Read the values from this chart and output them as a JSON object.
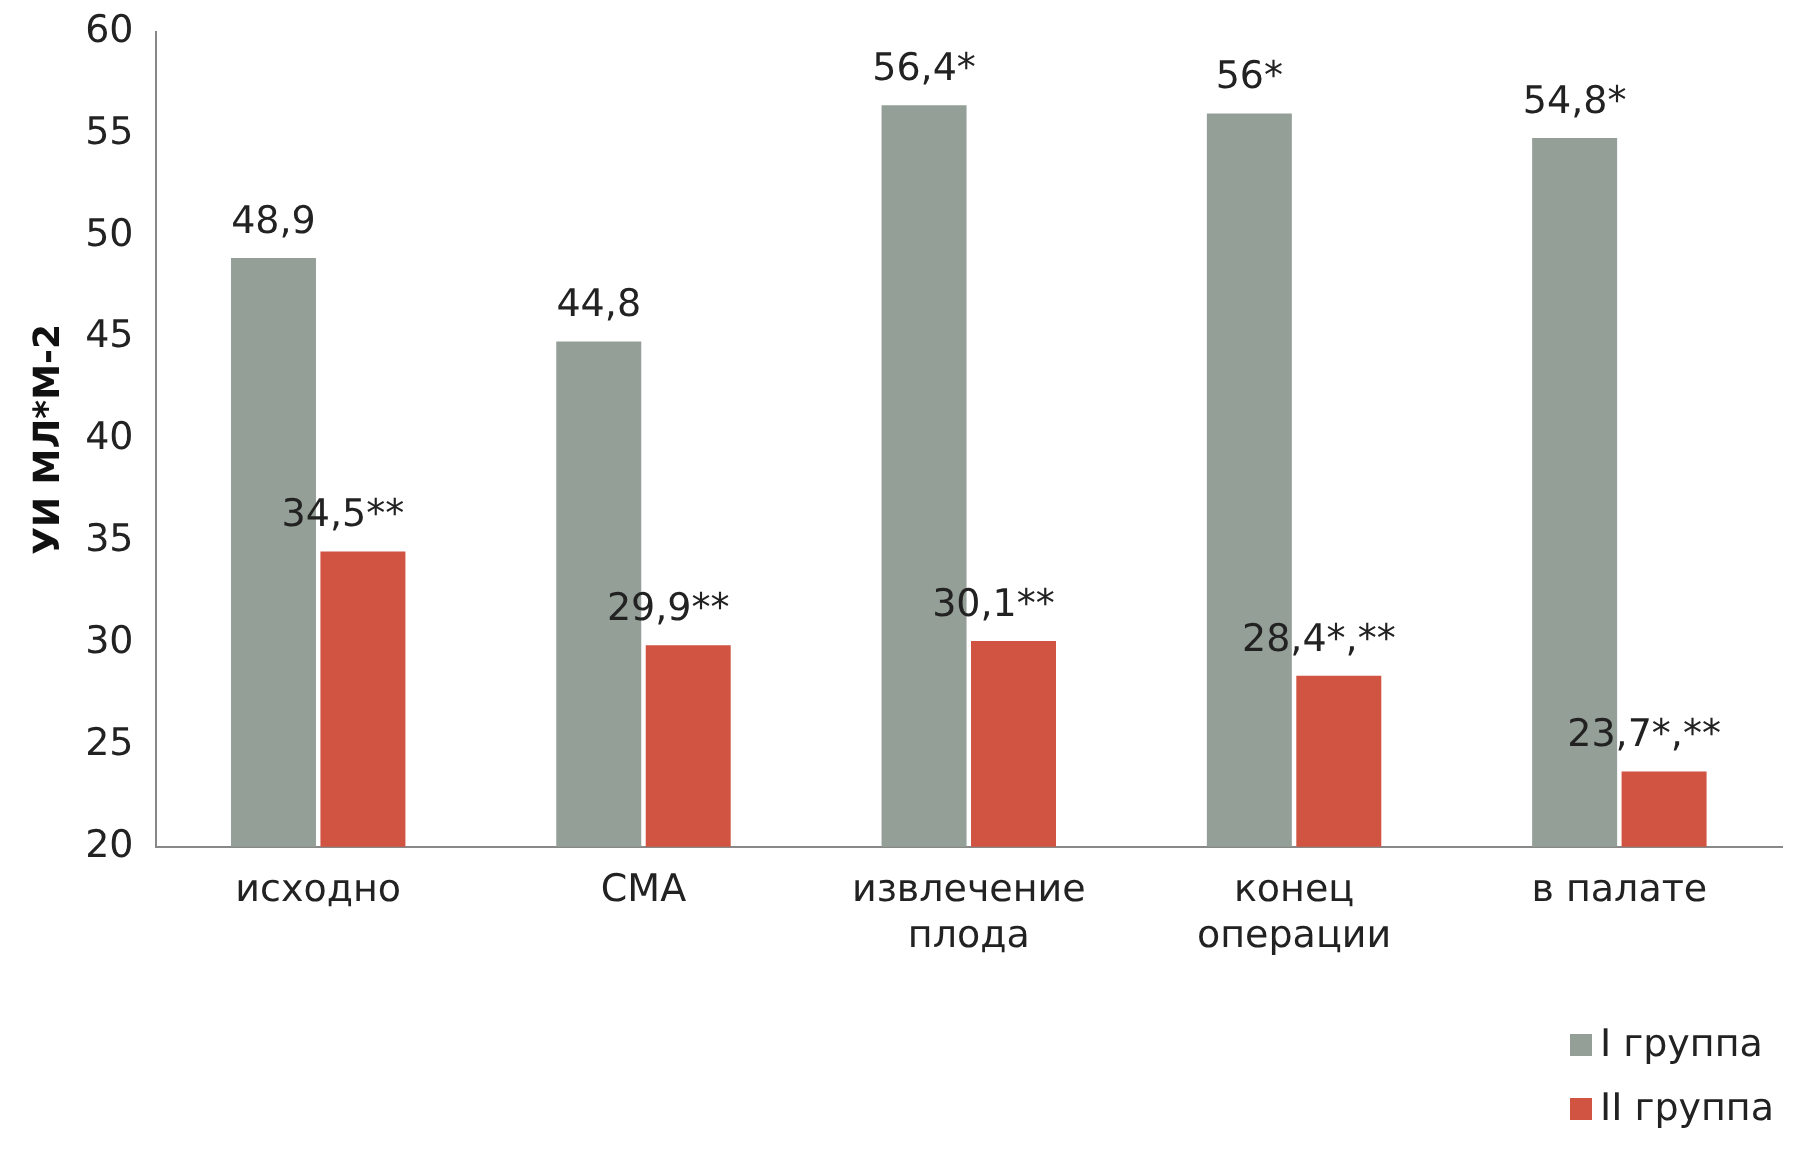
{
  "chart_data": {
    "type": "bar",
    "ylabel": "УИ МЛ*М-2",
    "categories": [
      "исходно",
      "СМА",
      "извлечение\nплода",
      "конец\nоперации",
      "в палате"
    ],
    "series": [
      {
        "name": "I группа",
        "color": "#949f97",
        "values": [
          48.9,
          44.8,
          56.4,
          56,
          54.8
        ],
        "value_labels": [
          "48,9",
          "44,8",
          "56,4*",
          "56*",
          "54,8*"
        ]
      },
      {
        "name": "II группа",
        "color": "#d05441",
        "values": [
          34.5,
          29.9,
          30.1,
          28.4,
          23.7
        ],
        "value_labels": [
          "34,5**",
          "29,9**",
          "30,1**",
          "28,4*,**",
          "23,7*,**"
        ]
      }
    ],
    "ylim": [
      20,
      60
    ],
    "yticks": [
      20,
      25,
      30,
      35,
      40,
      45,
      50,
      55,
      60
    ],
    "grid": false,
    "legend": "bottom right"
  }
}
